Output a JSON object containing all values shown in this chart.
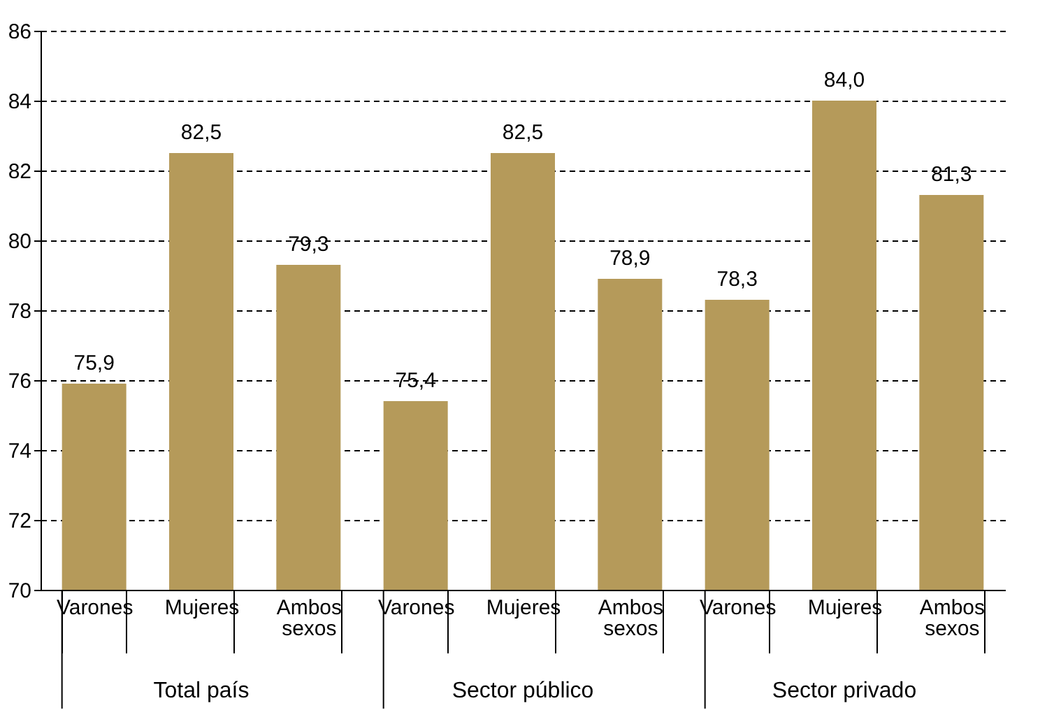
{
  "chart_data": {
    "type": "bar",
    "categories": [
      "Varones",
      "Mujeres",
      "Ambos sexos",
      "Varones",
      "Mujeres",
      "Ambos sexos",
      "Varones",
      "Mujeres",
      "Ambos sexos"
    ],
    "values": [
      75.9,
      82.5,
      79.3,
      75.4,
      82.5,
      78.9,
      78.3,
      84.0,
      81.3
    ],
    "value_labels": [
      "75,9",
      "82,5",
      "79,3",
      "75,4",
      "82,5",
      "78,9",
      "78,3",
      "84,0",
      "81,3"
    ],
    "color": "#b59a5a",
    "ylim": [
      70,
      86
    ],
    "yticks": [
      70,
      72,
      74,
      76,
      78,
      80,
      82,
      84,
      86
    ],
    "grid": "y",
    "annotations": [
      "Total país",
      "Sector público",
      "Sector privado"
    ]
  }
}
